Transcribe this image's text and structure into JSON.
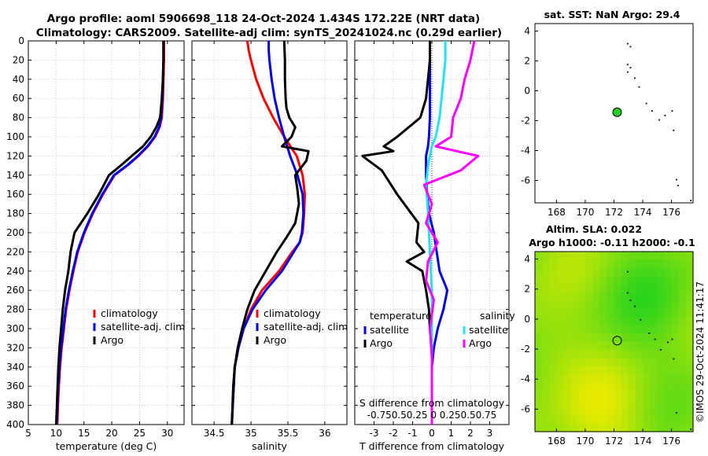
{
  "colors": {
    "climatology": "#ff0000",
    "satellite": "#0000ee",
    "argo": "#000000",
    "sat_temp": "#22e4f0",
    "salinity_argo": "#ff00ff",
    "grid": "#b0b0b0",
    "float": "#22cc22",
    "land": "#000000"
  },
  "header": {
    "line1": "Argo profile: aoml 5906698_118 24-Oct-2024 1.434S 172.22E (NRT data)",
    "line2": "Climatology: CARS2009. Satellite-adj clim: synTS_20241024.nc (0.29d earlier)"
  },
  "credit": "©IMOS 29-Oct-2024 11:41:17",
  "chart_data": [
    {
      "id": "temperature",
      "type": "line",
      "xlabel": "temperature (deg C)",
      "xlim": [
        5,
        33
      ],
      "xticks": [
        5,
        10,
        15,
        20,
        25,
        30
      ],
      "ylim": [
        0,
        400
      ],
      "yticks": [
        0,
        20,
        40,
        60,
        80,
        100,
        120,
        140,
        160,
        180,
        200,
        220,
        240,
        260,
        280,
        300,
        320,
        340,
        360,
        380,
        400
      ],
      "legend": [
        "climatology",
        "satellite-adj. clim",
        "Argo"
      ],
      "series": [
        {
          "name": "climatology",
          "color": "climatology",
          "x": [
            29.4,
            29.4,
            29.3,
            29.2,
            29.0,
            28.6,
            27.8,
            26.5,
            24.8,
            22.8,
            20.5,
            18.4,
            16.6,
            15.1,
            13.9,
            13.1,
            12.4,
            11.8,
            11.4,
            11.0,
            10.7,
            10.4,
            10.2
          ],
          "y": [
            0,
            20,
            40,
            60,
            80,
            90,
            100,
            110,
            120,
            130,
            140,
            160,
            180,
            200,
            220,
            240,
            260,
            280,
            300,
            320,
            340,
            370,
            400
          ]
        },
        {
          "name": "satellite-adj. clim",
          "color": "satellite",
          "x": [
            29.3,
            29.3,
            29.2,
            29.1,
            28.9,
            28.5,
            27.7,
            26.4,
            24.7,
            22.7,
            20.4,
            18.3,
            16.5,
            15.0,
            13.8,
            13.0,
            12.3,
            11.7,
            11.3,
            10.9,
            10.6,
            10.3,
            10.1
          ],
          "y": [
            0,
            20,
            40,
            60,
            80,
            90,
            100,
            110,
            120,
            130,
            140,
            160,
            180,
            200,
            220,
            240,
            260,
            280,
            300,
            320,
            340,
            370,
            400
          ]
        },
        {
          "name": "Argo",
          "color": "argo",
          "x": [
            29.3,
            29.3,
            29.2,
            29.0,
            28.7,
            28.0,
            27.0,
            25.6,
            23.6,
            21.6,
            19.5,
            17.7,
            15.6,
            13.3,
            12.6,
            12.2,
            11.6,
            11.2,
            10.9,
            10.6,
            10.4,
            10.2,
            10.0
          ],
          "y": [
            0,
            20,
            40,
            60,
            80,
            90,
            100,
            110,
            120,
            130,
            140,
            160,
            180,
            200,
            220,
            240,
            260,
            280,
            300,
            320,
            340,
            370,
            400
          ]
        }
      ]
    },
    {
      "id": "salinity",
      "type": "line",
      "xlabel": "salinity",
      "xlim": [
        34.2,
        36.3
      ],
      "xticks": [
        34.5,
        35,
        35.5,
        36
      ],
      "ylim": [
        0,
        400
      ],
      "legend": [
        "climatology",
        "satellite-adj. clim",
        "Argo"
      ],
      "series": [
        {
          "name": "climatology",
          "color": "climatology",
          "x": [
            34.95,
            34.97,
            35.0,
            35.07,
            35.17,
            35.3,
            35.45,
            35.62,
            35.7,
            35.73,
            35.72,
            35.7,
            35.66,
            35.56,
            35.38,
            35.15,
            35.0,
            34.9,
            34.83,
            34.78,
            34.76,
            34.74
          ],
          "y": [
            0,
            10,
            20,
            40,
            60,
            80,
            100,
            120,
            140,
            160,
            180,
            200,
            210,
            220,
            240,
            260,
            280,
            300,
            320,
            340,
            370,
            400
          ]
        },
        {
          "name": "satellite-adj. clim",
          "color": "satellite",
          "x": [
            35.24,
            35.24,
            35.25,
            35.28,
            35.32,
            35.38,
            35.45,
            35.53,
            35.63,
            35.7,
            35.71,
            35.69,
            35.66,
            35.58,
            35.42,
            35.2,
            35.02,
            34.9,
            34.83,
            34.78,
            34.76,
            34.74
          ],
          "y": [
            0,
            10,
            20,
            40,
            60,
            80,
            100,
            120,
            140,
            160,
            180,
            200,
            210,
            220,
            240,
            260,
            280,
            300,
            320,
            340,
            370,
            400
          ]
        },
        {
          "name": "Argo",
          "color": "argo",
          "x": [
            35.45,
            35.46,
            35.46,
            35.47,
            35.48,
            35.52,
            35.6,
            35.55,
            35.42,
            35.78,
            35.75,
            35.6,
            35.63,
            35.65,
            35.6,
            35.48,
            35.35,
            35.2,
            35.05,
            34.95,
            34.88,
            34.82,
            34.78,
            34.76,
            34.75,
            34.74
          ],
          "y": [
            0,
            20,
            40,
            60,
            70,
            80,
            90,
            100,
            110,
            115,
            125,
            140,
            155,
            170,
            190,
            205,
            220,
            240,
            260,
            280,
            300,
            320,
            340,
            360,
            380,
            400
          ]
        }
      ]
    },
    {
      "id": "difference",
      "type": "line",
      "xlabel": "T difference from climatology",
      "top_label": "S difference from climatology",
      "top_ticks": "-0.750.50.25  0  0.250.50.75",
      "xlim": [
        -4,
        4
      ],
      "xticks": [
        -3,
        -2,
        -1,
        0,
        1,
        2,
        3
      ],
      "ylim": [
        0,
        400
      ],
      "legend_groups": {
        "temperature": {
          "title": "temperature",
          "items": [
            "satellite",
            "Argo"
          ]
        },
        "salinity": {
          "title": "salinity",
          "items": [
            "satellite",
            "Argo"
          ]
        }
      },
      "series": [
        {
          "name": "temperature satellite",
          "color": "satellite",
          "x": [
            -0.1,
            -0.1,
            -0.1,
            -0.1,
            -0.1,
            -0.15,
            -0.2,
            -0.3,
            -0.3,
            -0.25,
            -0.15,
            0.1,
            0.25,
            0.4,
            0.6,
            0.8,
            0.6,
            0.3,
            0.1,
            0.0,
            0.0,
            0.0
          ],
          "y": [
            0,
            20,
            40,
            60,
            80,
            100,
            110,
            120,
            140,
            160,
            180,
            200,
            220,
            240,
            250,
            260,
            280,
            300,
            320,
            340,
            370,
            400
          ]
        },
        {
          "name": "temperature Argo",
          "color": "argo",
          "x": [
            -0.1,
            -0.1,
            -0.2,
            -0.3,
            -0.6,
            -1.8,
            -2.5,
            -2.0,
            -3.6,
            -2.6,
            -1.8,
            -0.7,
            -0.8,
            -0.4,
            -1.3,
            -0.5,
            -0.3,
            -0.15,
            -0.1,
            0.0,
            0.0,
            0.0
          ],
          "y": [
            0,
            20,
            40,
            60,
            80,
            100,
            110,
            115,
            120,
            135,
            160,
            190,
            210,
            220,
            230,
            240,
            260,
            280,
            300,
            320,
            360,
            400
          ]
        },
        {
          "name": "salinity satellite",
          "color": "sat_temp",
          "x": [
            0.7,
            0.7,
            0.6,
            0.5,
            0.4,
            0.2,
            0.0,
            -0.2,
            -0.3,
            -0.2,
            -0.1,
            0.0,
            0.0,
            0.0,
            0.0
          ],
          "y": [
            0,
            20,
            40,
            60,
            80,
            100,
            110,
            130,
            150,
            180,
            220,
            260,
            300,
            350,
            400
          ]
        },
        {
          "name": "salinity Argo",
          "color": "salinity_argo",
          "x": [
            2.2,
            2.0,
            1.7,
            1.5,
            1.1,
            1.0,
            0.2,
            2.4,
            1.5,
            -0.4,
            0.0,
            -0.3,
            0.3,
            -0.2,
            -0.3,
            0.1,
            -0.1,
            0.0,
            0.0,
            0.0
          ],
          "y": [
            0,
            20,
            40,
            60,
            80,
            100,
            110,
            120,
            135,
            150,
            170,
            190,
            210,
            230,
            250,
            270,
            300,
            330,
            360,
            400
          ]
        }
      ]
    },
    {
      "id": "sst-map",
      "type": "scatter",
      "title": "sat. SST: NaN Argo: 29.4",
      "xlim": [
        166.5,
        177.5
      ],
      "xticks": [
        168,
        170,
        172,
        174,
        176
      ],
      "ylim": [
        -7.5,
        4.5
      ],
      "yticks": [
        4,
        2,
        0,
        -2,
        -4,
        -6
      ],
      "float": {
        "lon": 172.22,
        "lat": -1.434
      },
      "islands": [
        [
          172.9,
          3.2
        ],
        [
          173.1,
          3.0
        ],
        [
          172.9,
          1.8
        ],
        [
          173.1,
          1.6
        ],
        [
          172.9,
          1.3
        ],
        [
          173.4,
          0.9
        ],
        [
          173.7,
          0.3
        ],
        [
          174.2,
          -0.8
        ],
        [
          174.6,
          -1.3
        ],
        [
          175.1,
          -1.9
        ],
        [
          175.5,
          -1.6
        ],
        [
          176.0,
          -1.3
        ],
        [
          176.1,
          -2.6
        ],
        [
          176.3,
          -5.9
        ],
        [
          176.4,
          -6.3
        ],
        [
          177.3,
          -7.3
        ]
      ]
    },
    {
      "id": "sla-map",
      "type": "heatmap",
      "title": "Altim. SLA: 0.022",
      "subtitle": "Argo h1000: -0.11 h2000: -0.1",
      "xlim": [
        166.5,
        177.5
      ],
      "xticks": [
        168,
        170,
        172,
        174,
        176
      ],
      "ylim": [
        -7.5,
        4.5
      ],
      "yticks": [
        4,
        2,
        0,
        -2,
        -4,
        -6
      ],
      "float": {
        "lon": 172.22,
        "lat": -1.434
      },
      "islands": [
        [
          172.9,
          3.2
        ],
        [
          172.9,
          1.8
        ],
        [
          173.1,
          1.3
        ],
        [
          173.4,
          0.9
        ],
        [
          173.8,
          0.0
        ],
        [
          174.4,
          -0.9
        ],
        [
          174.8,
          -1.3
        ],
        [
          175.2,
          -2.0
        ],
        [
          175.7,
          -1.5
        ],
        [
          176.0,
          -1.3
        ],
        [
          176.1,
          -2.6
        ],
        [
          176.3,
          -6.2
        ],
        [
          177.3,
          -7.3
        ]
      ]
    }
  ]
}
